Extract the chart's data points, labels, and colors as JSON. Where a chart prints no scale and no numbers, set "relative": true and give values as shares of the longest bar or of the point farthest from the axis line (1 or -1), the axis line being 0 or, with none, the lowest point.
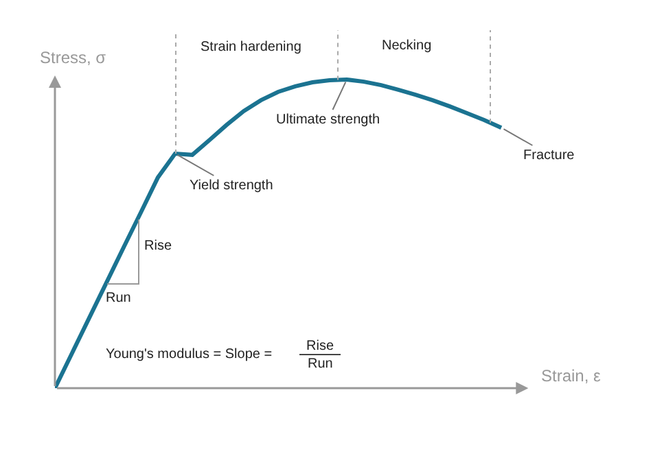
{
  "chart_data": {
    "type": "line",
    "relative": true,
    "xlabel": "Strain, ε",
    "ylabel": "Stress, σ",
    "marker": "none",
    "line_style": "solid",
    "categories": [
      null,
      null,
      null,
      null,
      null,
      null,
      null,
      null,
      null,
      null,
      null,
      null,
      null,
      null,
      null,
      null,
      null,
      null,
      null,
      null,
      null,
      null,
      null,
      null,
      null,
      null,
      null
    ],
    "series": [
      {
        "color": "#1b7391",
        "values": [
          0,
          0.114,
          0.228,
          0.342,
          0.456,
          0.569,
          0.683,
          0.76,
          0.756,
          0.804,
          0.853,
          0.898,
          0.933,
          0.96,
          0.978,
          0.991,
          0.998,
          1.0,
          0.993,
          0.982,
          0.967,
          0.951,
          0.933,
          0.913,
          0.891,
          0.869,
          0.844
        ]
      }
    ],
    "annotations": [
      "Strain hardening",
      "Necking",
      "Yield strength",
      "Ultimate strength",
      "Fracture",
      "Rise",
      "Run",
      "Young's modulus = Slope =",
      "Rise",
      "Run"
    ]
  }
}
